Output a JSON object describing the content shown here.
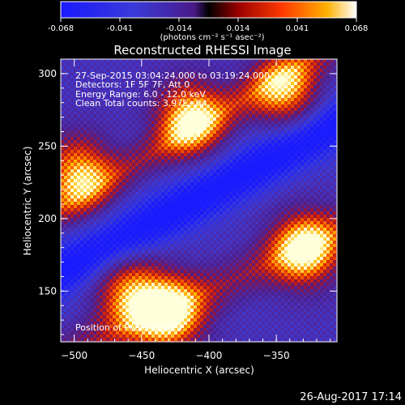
{
  "chart_data": {
    "type": "heatmap",
    "title": "Reconstructed RHESSI Image",
    "xlabel": "Heliocentric X (arcsec)",
    "ylabel": "Heliocentric Y (arcsec)",
    "xlim": [
      -510,
      -305
    ],
    "ylim": [
      115,
      310
    ],
    "x_ticks": [
      -500,
      -450,
      -400,
      -350
    ],
    "y_ticks": [
      150,
      200,
      250,
      300
    ],
    "colorbar": {
      "range": [
        -0.068,
        0.068
      ],
      "ticks": [
        "-0.068",
        "-0.041",
        "-0.014",
        "0.014",
        "0.041",
        "0.068"
      ],
      "units_label": "(photons cm⁻² s⁻¹ asec⁻²)"
    },
    "annotations": [
      "27-Sep-2015 03:04:24.000 to 03:19:24.000",
      "Detectors: 1F 5F 7F, Att 0",
      "Energy Range: 6.0 - 12.0 keV",
      "Clean     Total counts: 3.97E+04"
    ],
    "peak_label": "Position of Peak = [-413.",
    "timestamp": "26-Aug-2017 17:14",
    "bright_sources": [
      {
        "x": -498,
        "y": 232,
        "intensity": 0.9
      },
      {
        "x": -415,
        "y": 270,
        "intensity": 1.0
      },
      {
        "x": -345,
        "y": 290,
        "intensity": 0.85
      },
      {
        "x": -330,
        "y": 180,
        "intensity": 1.0
      },
      {
        "x": -430,
        "y": 135,
        "intensity": 1.0
      },
      {
        "x": -460,
        "y": 150,
        "intensity": 0.8
      }
    ],
    "grid": false
  }
}
